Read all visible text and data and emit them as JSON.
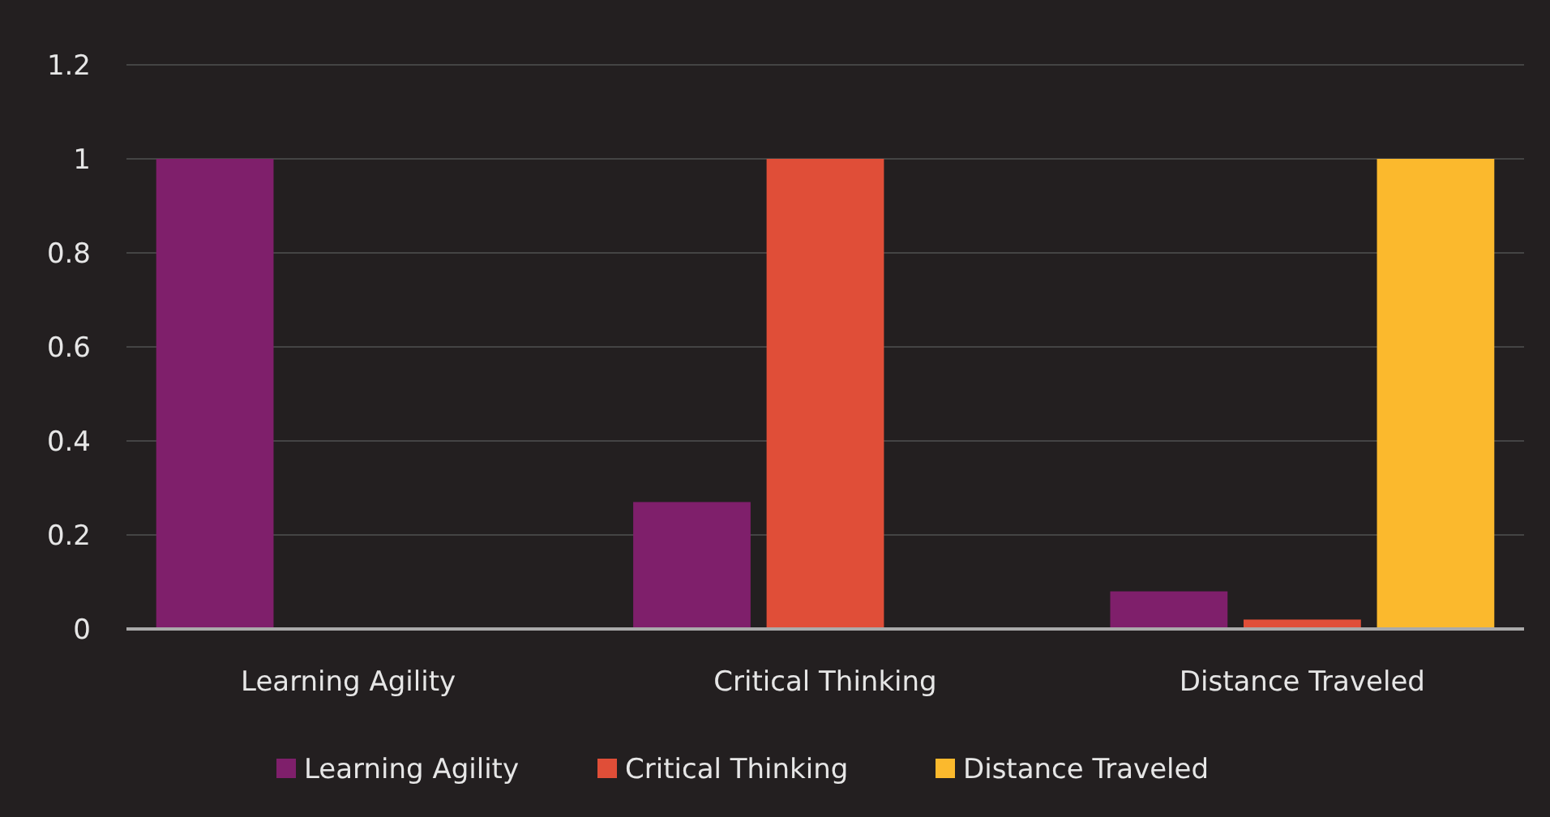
{
  "chart_data": {
    "type": "bar",
    "categories": [
      "Learning Agility",
      "Critical Thinking",
      "Distance Traveled"
    ],
    "series": [
      {
        "name": "Learning Agility",
        "color": "#7f1f6b",
        "values": [
          1,
          0.27,
          0.08
        ]
      },
      {
        "name": "Critical Thinking",
        "color": "#e04e38",
        "values": [
          null,
          1,
          0.02
        ]
      },
      {
        "name": "Distance Traveled",
        "color": "#fbb92d",
        "values": [
          null,
          null,
          1
        ]
      }
    ],
    "ylim": [
      0,
      1.2
    ],
    "yticks": [
      0,
      0.2,
      0.4,
      0.6,
      0.8,
      1,
      1.2
    ],
    "grid": "y",
    "legend": "bottom"
  }
}
